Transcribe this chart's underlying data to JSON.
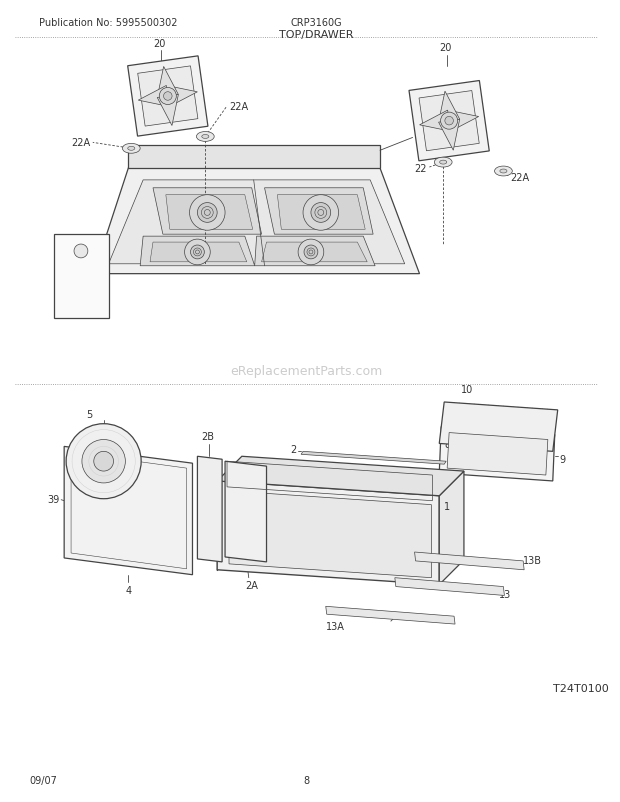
{
  "title": "TOP/DRAWER",
  "pub_no": "Publication No: 5995500302",
  "model": "CRP3160G",
  "diagram_code": "T24T0100",
  "date": "09/07",
  "page": "8",
  "watermark": "eReplacementParts.com",
  "bg_color": "#ffffff",
  "text_color": "#333333",
  "line_color": "#444444",
  "lw_main": 0.9,
  "lw_thin": 0.5,
  "lw_leader": 0.6
}
